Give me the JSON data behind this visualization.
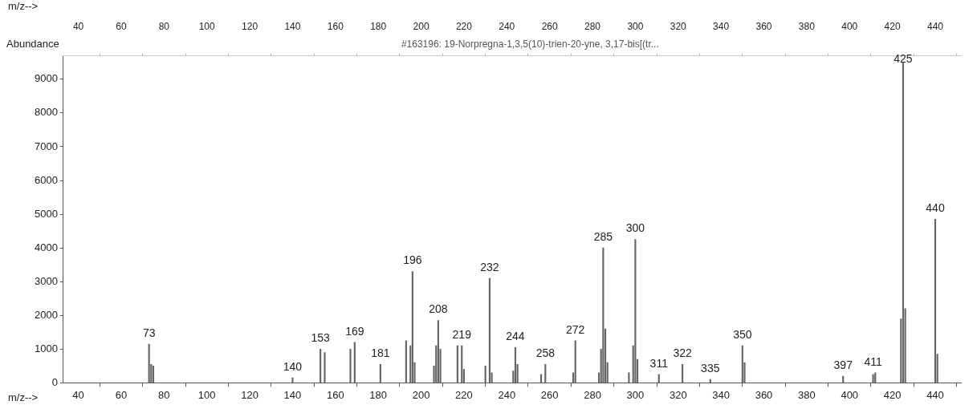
{
  "chart_data": {
    "type": "bar",
    "title": "#163196: 19-Norpregna-1,3,5(10)-trien-20-yne, 3,17-bis[(tr...",
    "xlabel": "m/z-->",
    "ylabel": "Abundance",
    "x2label": "m/z-->",
    "x": [
      73,
      74,
      75,
      140,
      153,
      155,
      167,
      169,
      181,
      193,
      195,
      196,
      197,
      206,
      207,
      208,
      209,
      217,
      219,
      220,
      230,
      232,
      233,
      243,
      244,
      245,
      256,
      258,
      271,
      272,
      283,
      284,
      285,
      286,
      287,
      297,
      299,
      300,
      301,
      311,
      322,
      335,
      350,
      351,
      397,
      411,
      412,
      424,
      425,
      426,
      440,
      441
    ],
    "values": [
      1150,
      550,
      500,
      150,
      1000,
      900,
      1000,
      1200,
      550,
      1250,
      1100,
      3300,
      600,
      500,
      1100,
      1850,
      1000,
      1100,
      1100,
      400,
      500,
      3100,
      300,
      350,
      1050,
      550,
      250,
      550,
      300,
      1250,
      300,
      1000,
      4000,
      1600,
      600,
      300,
      1100,
      4250,
      700,
      250,
      550,
      100,
      1100,
      600,
      200,
      250,
      300,
      1900,
      9500,
      2200,
      4850,
      850
    ],
    "annotations": [
      {
        "text": "73",
        "x": 73,
        "y": 1150
      },
      {
        "text": "140",
        "x": 140,
        "y": 150
      },
      {
        "text": "153",
        "x": 153,
        "y": 1000
      },
      {
        "text": "169",
        "x": 169,
        "y": 1200
      },
      {
        "text": "181",
        "x": 181,
        "y": 550
      },
      {
        "text": "196",
        "x": 196,
        "y": 3300
      },
      {
        "text": "208",
        "x": 208,
        "y": 1850
      },
      {
        "text": "219",
        "x": 219,
        "y": 1100
      },
      {
        "text": "232",
        "x": 232,
        "y": 3100
      },
      {
        "text": "244",
        "x": 244,
        "y": 1050
      },
      {
        "text": "258",
        "x": 258,
        "y": 550
      },
      {
        "text": "272",
        "x": 272,
        "y": 1250
      },
      {
        "text": "285",
        "x": 285,
        "y": 4000
      },
      {
        "text": "300",
        "x": 300,
        "y": 4250
      },
      {
        "text": "311",
        "x": 311,
        "y": 250
      },
      {
        "text": "322",
        "x": 322,
        "y": 550
      },
      {
        "text": "335",
        "x": 335,
        "y": 100
      },
      {
        "text": "350",
        "x": 350,
        "y": 1100
      },
      {
        "text": "397",
        "x": 397,
        "y": 200
      },
      {
        "text": "411",
        "x": 411,
        "y": 300
      },
      {
        "text": "425",
        "x": 425,
        "y": 9500
      },
      {
        "text": "440",
        "x": 440,
        "y": 4850
      }
    ],
    "color": "#666666",
    "xlim": [
      33,
      452
    ],
    "xticks": [
      40,
      60,
      80,
      100,
      120,
      140,
      160,
      180,
      200,
      220,
      240,
      260,
      280,
      300,
      320,
      340,
      360,
      380,
      400,
      420,
      440
    ],
    "x2lim": [
      33,
      452
    ],
    "x2ticks": [
      40,
      60,
      80,
      100,
      120,
      140,
      160,
      180,
      200,
      220,
      240,
      260,
      280,
      300,
      320,
      340,
      360,
      380,
      400,
      420,
      440
    ],
    "ylim": [
      0,
      9700
    ],
    "yticks": [
      0,
      1000,
      2000,
      3000,
      4000,
      5000,
      6000,
      7000,
      8000,
      9000
    ],
    "grid": false,
    "legend": false
  }
}
